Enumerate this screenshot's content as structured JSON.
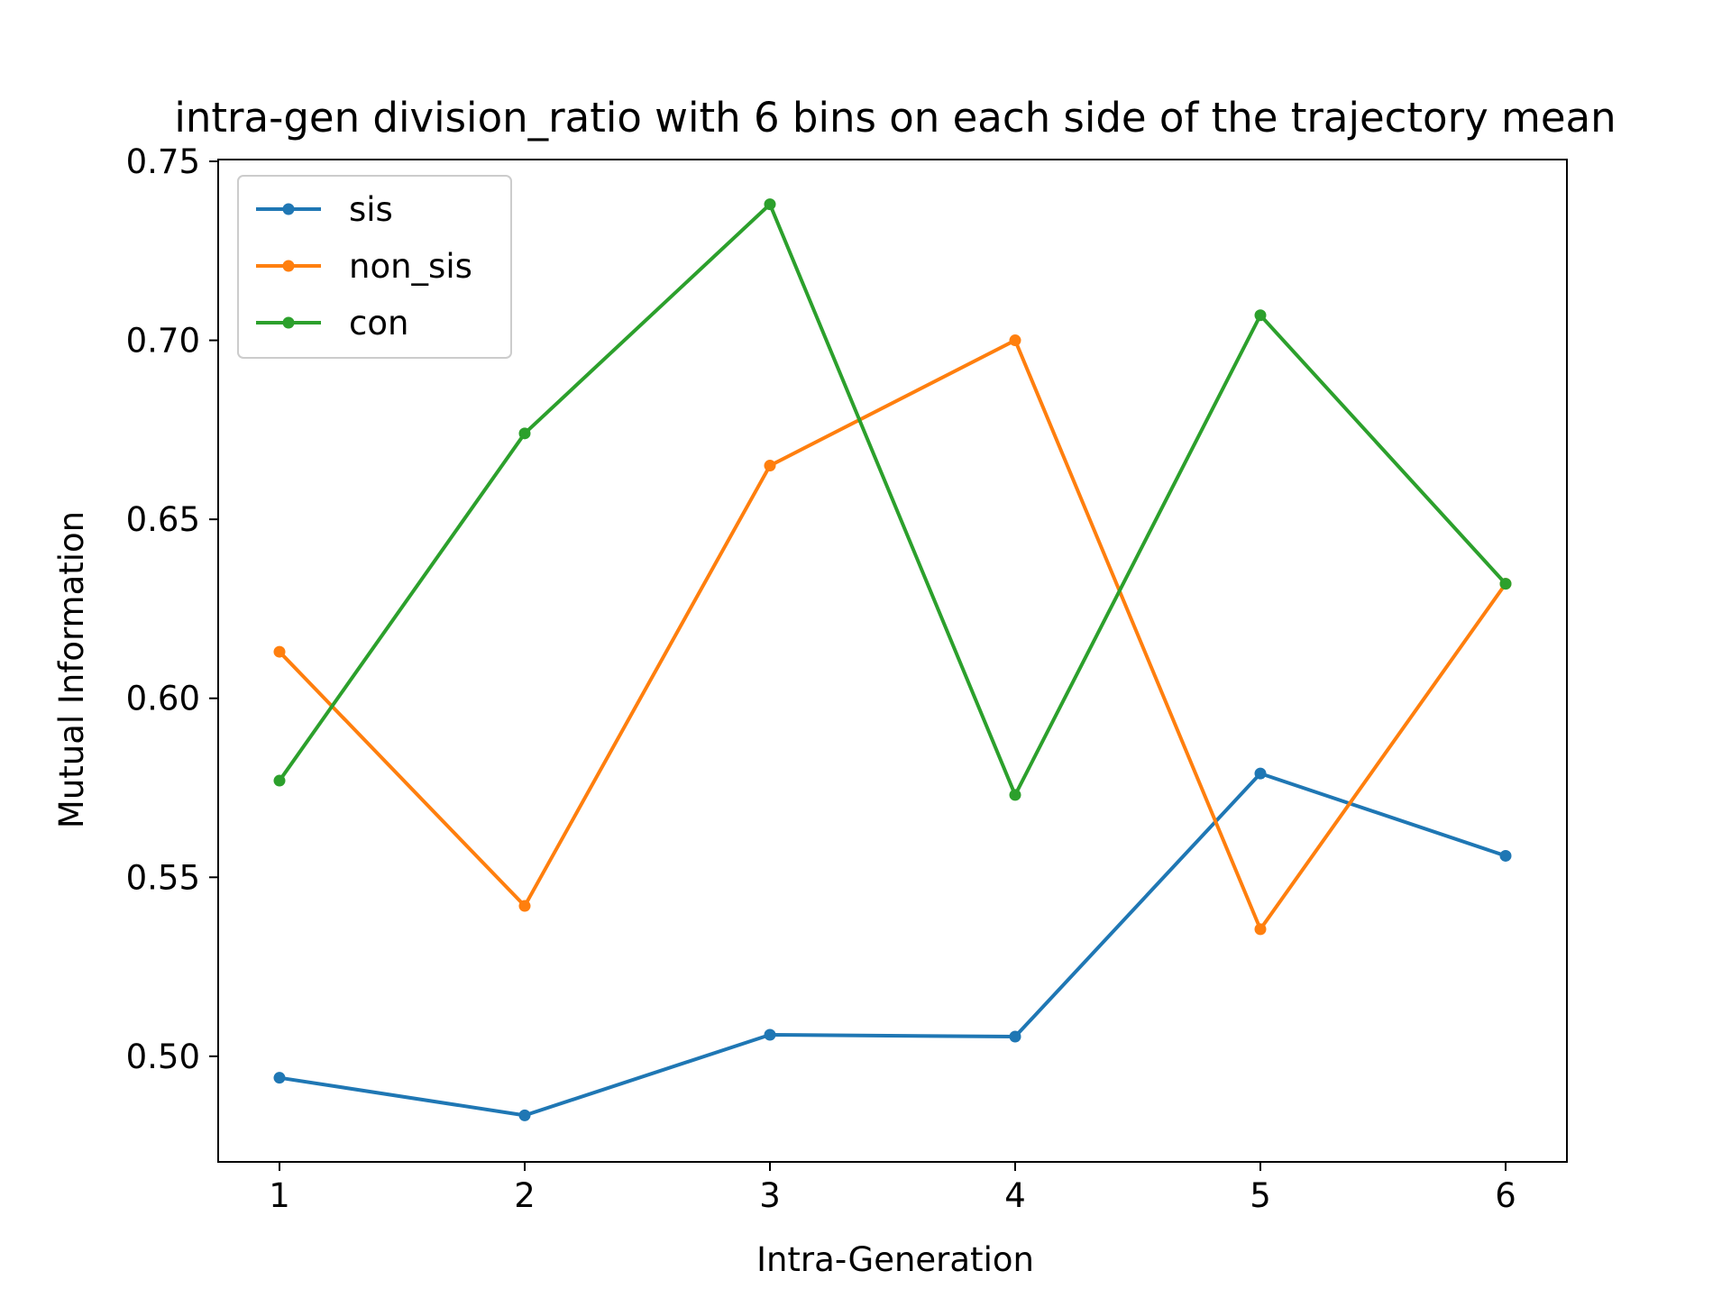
{
  "chart_data": {
    "type": "line",
    "title": "intra-gen division_ratio with 6 bins on each side of the trajectory mean",
    "xlabel": "Intra-Generation",
    "ylabel": "Mutual Information",
    "x": [
      1,
      2,
      3,
      4,
      5,
      6
    ],
    "xlim": [
      0.75,
      6.25
    ],
    "ylim": [
      0.4705,
      0.7505
    ],
    "xticks": [
      "1",
      "2",
      "3",
      "4",
      "5",
      "6"
    ],
    "yticks": [
      "0.50",
      "0.55",
      "0.60",
      "0.65",
      "0.70",
      "0.75"
    ],
    "grid": false,
    "legend_position": "top-left",
    "series": [
      {
        "name": "sis",
        "color": "#1f77b4",
        "values": [
          0.494,
          0.4835,
          0.506,
          0.5055,
          0.579,
          0.556
        ]
      },
      {
        "name": "non_sis",
        "color": "#ff7f0e",
        "values": [
          0.613,
          0.542,
          0.665,
          0.7,
          0.5355,
          0.632
        ]
      },
      {
        "name": "con",
        "color": "#2ca02c",
        "values": [
          0.577,
          0.674,
          0.738,
          0.573,
          0.707,
          0.632
        ]
      }
    ]
  }
}
